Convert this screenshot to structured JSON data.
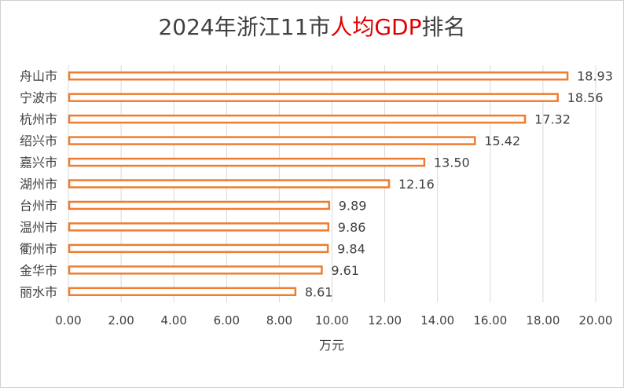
{
  "title": {
    "part1": "2024年浙江11市",
    "highlight": "人均GDP",
    "part2": "排名"
  },
  "colors": {
    "bar_stroke": "#ed7d31",
    "bar_fill": "#ffffff",
    "grid": "#d9d9d9",
    "highlight": "#e00000",
    "text": "#404040"
  },
  "chart_data": {
    "type": "bar",
    "orientation": "horizontal",
    "categories": [
      "舟山市",
      "宁波市",
      "杭州市",
      "绍兴市",
      "嘉兴市",
      "湖州市",
      "台州市",
      "温州市",
      "衢州市",
      "金华市",
      "丽水市"
    ],
    "values": [
      18.93,
      18.56,
      17.32,
      15.42,
      13.5,
      12.16,
      9.89,
      9.86,
      9.84,
      9.61,
      8.61
    ],
    "value_labels": [
      "18.93",
      "18.56",
      "17.32",
      "15.42",
      "13.50",
      "12.16",
      "9.89",
      "9.86",
      "9.84",
      "9.61",
      "8.61"
    ],
    "xlim": [
      0,
      20
    ],
    "xticks": [
      "0.00",
      "2.00",
      "4.00",
      "6.00",
      "8.00",
      "10.00",
      "12.00",
      "14.00",
      "16.00",
      "18.00",
      "20.00"
    ],
    "xlabel": "万元",
    "grid": "vertical"
  }
}
